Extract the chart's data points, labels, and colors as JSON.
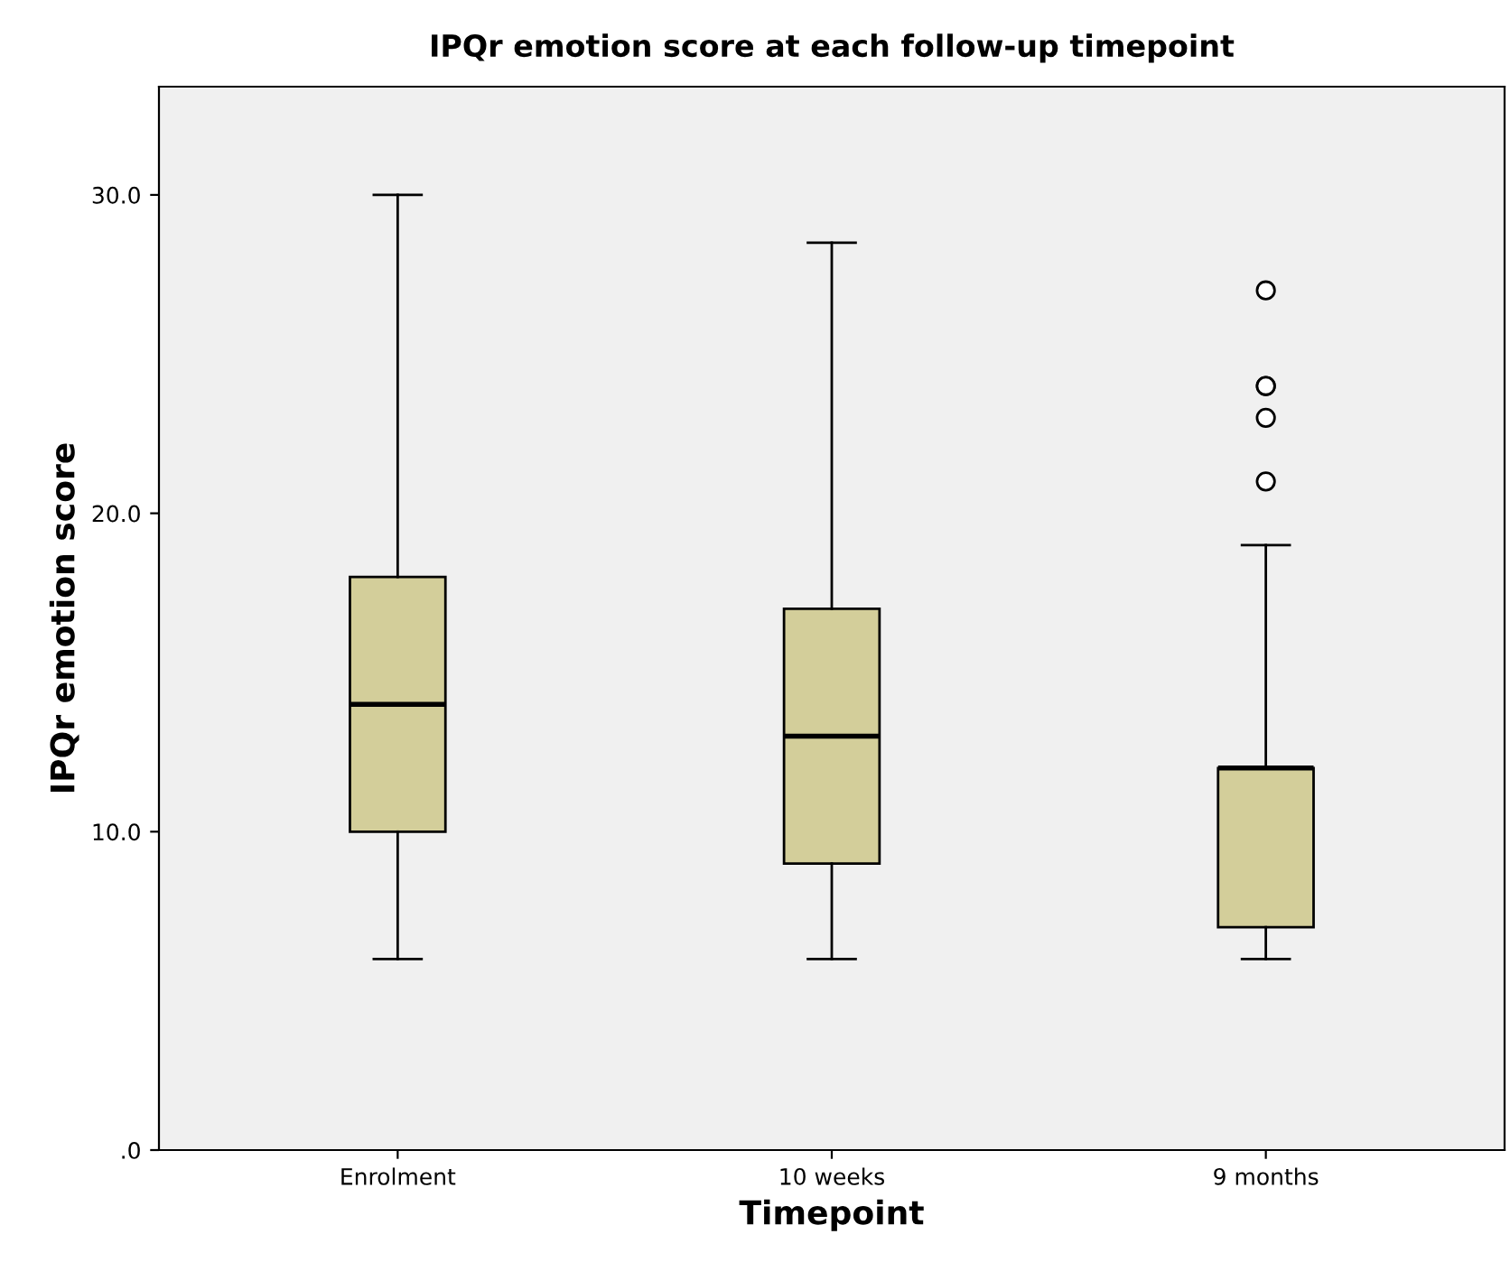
{
  "chart_data": {
    "type": "box",
    "title": "IPQr emotion score at each follow-up timepoint",
    "xlabel": "Timepoint",
    "ylabel": "IPQr emotion score",
    "categories": [
      "Enrolment",
      "10 weeks",
      "9 months"
    ],
    "series": [
      {
        "color": "#d3ce9a",
        "boxes": [
          {
            "low": 6,
            "q1": 10,
            "median": 14,
            "q3": 18,
            "high": 30
          },
          {
            "low": 6,
            "q1": 9,
            "median": 13,
            "q3": 17,
            "high": 28.5
          },
          {
            "low": 6,
            "q1": 7,
            "median": 12,
            "q3": 12,
            "high": 19,
            "outliers": [
              21,
              23,
              24,
              24,
              27
            ]
          }
        ]
      }
    ],
    "ylim": [
      0,
      33.4
    ],
    "yticks": [
      {
        "value": 0,
        "label": ".0"
      },
      {
        "value": 10,
        "label": "10.0"
      },
      {
        "value": 20,
        "label": "20.0"
      },
      {
        "value": 30,
        "label": "30.0"
      }
    ],
    "grid": false,
    "legend": false
  }
}
